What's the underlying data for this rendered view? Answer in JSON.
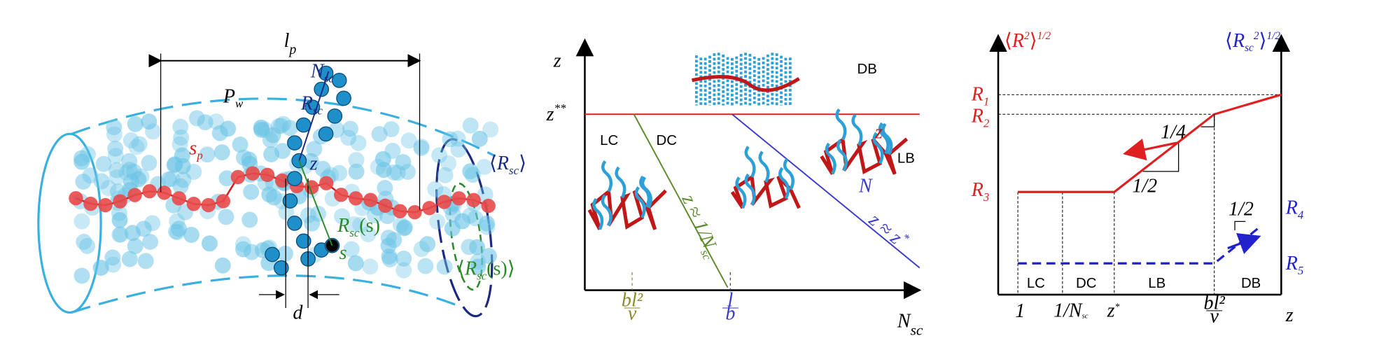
{
  "panel_a": {
    "persistence_length": {
      "main": "l",
      "sub": "p"
    },
    "pore_width": {
      "main": "P",
      "sub": "w"
    },
    "side_chain_length": {
      "main": "N",
      "sub": "sc"
    },
    "side_chain_size": {
      "main": "R",
      "sub": "sc"
    },
    "backbone_segment": {
      "main": "s",
      "sub": "p"
    },
    "grafting": "z",
    "local_side_chain_size": {
      "main": "R",
      "sub": "sc",
      "arg": "(s)"
    },
    "monomer": "s",
    "mean_side_chain_size": {
      "open": "⟨",
      "main": "R",
      "sub": "sc",
      "close": "⟩"
    },
    "mean_local_size": {
      "open": "⟨",
      "main": "R",
      "sub": "sc",
      "arg": "(s)",
      "close": "⟩"
    },
    "spacing": "d"
  },
  "panel_b": {
    "y_axis": "z",
    "y_level": {
      "main": "z",
      "sup": "**"
    },
    "regions": [
      "DB",
      "LC",
      "DC",
      "LB"
    ],
    "green_line": {
      "main": "z ≈ 1/N",
      "sub": "sc"
    },
    "blue_line": {
      "main": "z ≈ z",
      "sup": "*"
    },
    "blob_labels": [
      "z",
      "N"
    ],
    "x_ticks": [
      {
        "num": "bl²",
        "den": "v"
      },
      {
        "num": "l",
        "den": "b"
      }
    ],
    "x_axis": {
      "main": "N",
      "sub": "sc"
    }
  },
  "panel_c": {
    "left_axis": {
      "open": "⟨",
      "main": "R",
      "sup": "2",
      "close": "⟩",
      "power": "1/2"
    },
    "right_axis": {
      "open": "⟨",
      "main": "R",
      "sub": "sc",
      "sup": "2",
      "close": "⟩",
      "power": "1/2"
    },
    "left_levels": [
      {
        "main": "R",
        "sub": "1"
      },
      {
        "main": "R",
        "sub": "2"
      },
      {
        "main": "R",
        "sub": "3"
      }
    ],
    "right_levels": [
      {
        "main": "R",
        "sub": "4"
      },
      {
        "main": "R",
        "sub": "5"
      }
    ],
    "slopes": [
      "1/4",
      "1/2",
      "1/2"
    ],
    "regions": [
      "LC",
      "DC",
      "LB",
      "DB"
    ],
    "x_ticks": [
      "1",
      {
        "main": "1/N",
        "sub": "sc"
      },
      {
        "main": "z",
        "sup": "*"
      },
      {
        "num": "bl²",
        "den": "v"
      }
    ],
    "x_axis": "z"
  }
}
